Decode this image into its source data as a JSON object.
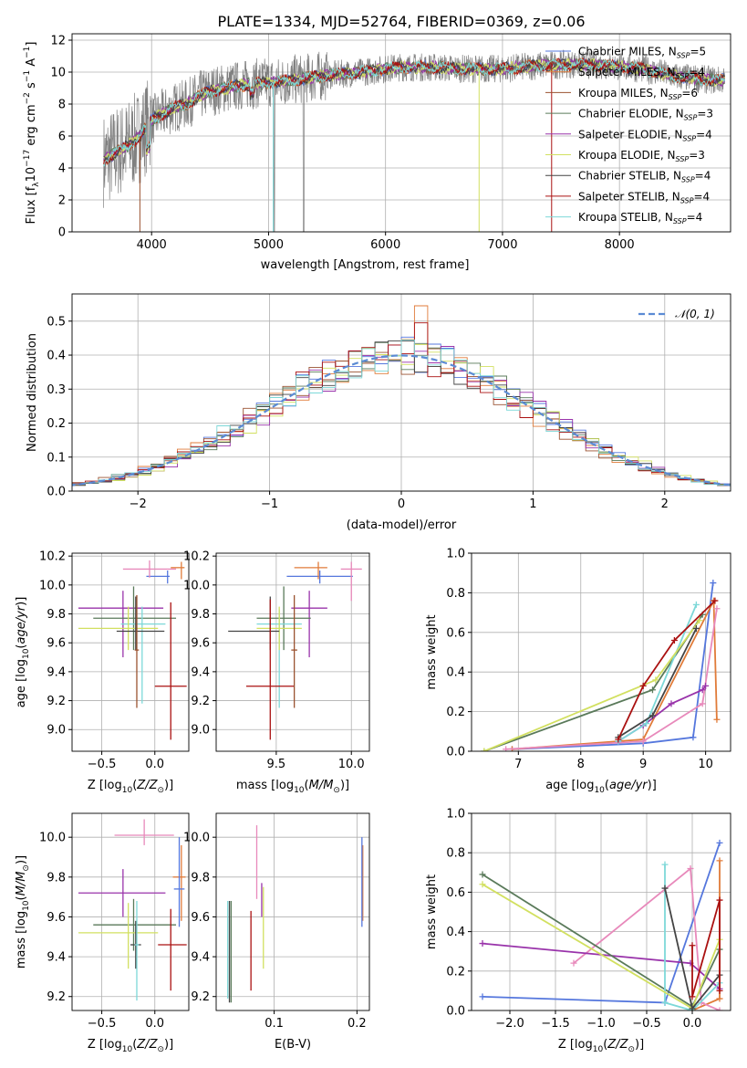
{
  "figure": {
    "title": "PLATE=1334, MJD=52764, FIBERID=0369, z=0.06"
  },
  "colors": {
    "Chabrier MILES": "#5577dd",
    "Salpeter MILES": "#e07b39",
    "Kroupa MILES": "#9a5230",
    "Chabrier ELODIE": "#5a7a5a",
    "Salpeter ELODIE": "#9933aa",
    "Kroupa ELODIE": "#d2e060",
    "Chabrier STELIB": "#444444",
    "Salpeter STELIB": "#aa1111",
    "Kroupa STELIB": "#7dd8d8",
    "data": "#808080",
    "normal": "#5b8bd4"
  },
  "chart_data": [
    {
      "id": "spectrum",
      "type": "line",
      "title": "PLATE=1334, MJD=52764, FIBERID=0369, z=0.06",
      "xlabel": "wavelength [Angstrom, rest frame]",
      "ylabel": "Flux [f_λ 10^-17 erg cm^-2 s^-1 A^-1]",
      "xlim": [
        3320,
        8950
      ],
      "ylim": [
        0,
        12.4
      ],
      "xticks": [
        4000,
        5000,
        6000,
        7000,
        8000
      ],
      "yticks": [
        0,
        2,
        4,
        6,
        8,
        10,
        12
      ],
      "legend_position": "top-right",
      "legend": [
        {
          "name": "Chabrier MILES",
          "sub": "SSP",
          "n": "5",
          "color": "#5577dd"
        },
        {
          "name": "Salpeter MILES",
          "sub": "SSP",
          "n": "4",
          "color": "#e07b39"
        },
        {
          "name": "Kroupa MILES",
          "sub": "SSP",
          "n": "6",
          "color": "#9a5230"
        },
        {
          "name": "Chabrier ELODIE",
          "sub": "SSP",
          "n": "3",
          "color": "#5a7a5a"
        },
        {
          "name": "Salpeter ELODIE",
          "sub": "SSP",
          "n": "4",
          "color": "#9933aa"
        },
        {
          "name": "Kroupa ELODIE",
          "sub": "SSP",
          "n": "3",
          "color": "#d2e060"
        },
        {
          "name": "Chabrier STELIB",
          "sub": "SSP",
          "n": "4",
          "color": "#444444"
        },
        {
          "name": "Salpeter STELIB",
          "sub": "SSP",
          "n": "4",
          "color": "#aa1111"
        },
        {
          "name": "Kroupa STELIB",
          "sub": "SSP",
          "n": "4",
          "color": "#7dd8d8"
        }
      ],
      "continuum": {
        "x": [
          3600,
          3700,
          3800,
          3900,
          4000,
          4100,
          4200,
          4300,
          4400,
          4500,
          4700,
          4900,
          5100,
          5300,
          5500,
          5800,
          6100,
          6400,
          6700,
          7000,
          7300,
          7600,
          7900,
          8200,
          8500,
          8800
        ],
        "y": [
          4.5,
          5.0,
          5.4,
          6.0,
          7.0,
          7.4,
          7.8,
          8.0,
          8.5,
          8.8,
          9.1,
          9.3,
          9.4,
          9.6,
          9.8,
          10.0,
          10.3,
          10.3,
          10.2,
          10.2,
          10.4,
          10.5,
          10.4,
          10.2,
          9.7,
          9.5
        ]
      }
    },
    {
      "id": "residuals",
      "type": "bar",
      "xlabel": "(data-model)/error",
      "ylabel": "Normed distribution",
      "xlim": [
        -2.5,
        2.5
      ],
      "ylim": [
        0,
        0.58
      ],
      "xticks": [
        -2,
        -1,
        0,
        1,
        2
      ],
      "yticks": [
        0.0,
        0.1,
        0.2,
        0.3,
        0.4,
        0.5
      ],
      "bin_width": 0.1,
      "legend_position": "top-right",
      "legend": [
        {
          "name": "𝒩(0, 1)",
          "style": "dashed",
          "color": "#5b8bd4"
        }
      ],
      "normal_curve": {
        "mean": 0,
        "sigma": 1
      }
    },
    {
      "id": "age_vs_Z",
      "type": "scatter",
      "xlabel": "Z [log10(Z/Z⊙)]",
      "ylabel": "age [log10(age/yr)]",
      "xlim": [
        -0.78,
        0.32
      ],
      "ylim": [
        8.85,
        10.22
      ],
      "xticks": [
        -0.5,
        0.0
      ],
      "yticks": [
        9.0,
        9.2,
        9.4,
        9.6,
        9.8,
        10.0,
        10.2
      ],
      "errorbars": [
        {
          "color": "#5577dd",
          "x": 0.12,
          "xerr": [
            0.2,
            0.02
          ],
          "y": 10.06,
          "yerr": [
            0.05,
            0.04
          ]
        },
        {
          "color": "#e07b39",
          "x": 0.25,
          "xerr": [
            0.1,
            0.03
          ],
          "y": 10.12,
          "yerr": [
            0.08,
            0.04
          ]
        },
        {
          "color": "#e889bb",
          "x": -0.05,
          "xerr": [
            0.25,
            0.25
          ],
          "y": 10.11,
          "yerr": [
            0.06,
            0.06
          ]
        },
        {
          "color": "#9933aa",
          "x": -0.3,
          "xerr": [
            0.42,
            0.38
          ],
          "y": 9.84,
          "yerr": [
            0.34,
            0.12
          ]
        },
        {
          "color": "#5a7a5a",
          "x": -0.2,
          "xerr": [
            0.38,
            0.4
          ],
          "y": 9.77,
          "yerr": [
            0.22,
            0.22
          ]
        },
        {
          "color": "#7dd8d8",
          "x": -0.12,
          "xerr": [
            0.2,
            0.22
          ],
          "y": 9.73,
          "yerr": [
            0.55,
            0.12
          ]
        },
        {
          "color": "#d2e060",
          "x": -0.25,
          "xerr": [
            0.47,
            0.28
          ],
          "y": 9.7,
          "yerr": [
            0.15,
            0.15
          ]
        },
        {
          "color": "#444444",
          "x": -0.18,
          "xerr": [
            0.18,
            0.27
          ],
          "y": 9.68,
          "yerr": [
            0.13,
            0.24
          ]
        },
        {
          "color": "#aa1111",
          "x": 0.15,
          "xerr": [
            0.15,
            0.15
          ],
          "y": 9.3,
          "yerr": [
            0.37,
            0.58
          ]
        },
        {
          "color": "#9a5230",
          "x": -0.17,
          "xerr": [
            0.02,
            0.02
          ],
          "y": 9.55,
          "yerr": [
            0.4,
            0.38
          ]
        }
      ]
    },
    {
      "id": "age_vs_mass",
      "type": "scatter",
      "xlabel": "mass [log10(M/M⊙)]",
      "xlim": [
        9.1,
        10.12
      ],
      "ylim": [
        8.85,
        10.22
      ],
      "xticks": [
        9.5,
        10.0
      ],
      "yticks": [
        9.0,
        9.2,
        9.4,
        9.6,
        9.8,
        10.0,
        10.2
      ],
      "errorbars": [
        {
          "color": "#5577dd",
          "x": 9.79,
          "xerr": [
            0.22,
            0.22
          ],
          "y": 10.06,
          "yerr": [
            0.05,
            0.04
          ]
        },
        {
          "color": "#e07b39",
          "x": 9.78,
          "xerr": [
            0.16,
            0.06
          ],
          "y": 10.12,
          "yerr": [
            0.08,
            0.04
          ]
        },
        {
          "color": "#e889bb",
          "x": 10.0,
          "xerr": [
            0.07,
            0.07
          ],
          "y": 10.11,
          "yerr": [
            0.22,
            0.05
          ]
        },
        {
          "color": "#9933aa",
          "x": 9.72,
          "xerr": [
            0.12,
            0.12
          ],
          "y": 9.84,
          "yerr": [
            0.34,
            0.12
          ]
        },
        {
          "color": "#5a7a5a",
          "x": 9.55,
          "xerr": [
            0.18,
            0.18
          ],
          "y": 9.77,
          "yerr": [
            0.22,
            0.22
          ]
        },
        {
          "color": "#7dd8d8",
          "x": 9.52,
          "xerr": [
            0.15,
            0.15
          ],
          "y": 9.73,
          "yerr": [
            0.58,
            0.1
          ]
        },
        {
          "color": "#d2e060",
          "x": 9.52,
          "xerr": [
            0.15,
            0.15
          ],
          "y": 9.7,
          "yerr": [
            0.15,
            0.15
          ]
        },
        {
          "color": "#444444",
          "x": 9.46,
          "xerr": [
            0.28,
            0.06
          ],
          "y": 9.68,
          "yerr": [
            0.13,
            0.24
          ]
        },
        {
          "color": "#aa1111",
          "x": 9.46,
          "xerr": [
            0.16,
            0.16
          ],
          "y": 9.3,
          "yerr": [
            0.37,
            0.6
          ]
        },
        {
          "color": "#9a5230",
          "x": 9.62,
          "xerr": [
            0.02,
            0.02
          ],
          "y": 9.55,
          "yerr": [
            0.4,
            0.38
          ]
        }
      ]
    },
    {
      "id": "weight_vs_age",
      "type": "line",
      "xlabel": "age [log10(age/yr)]",
      "ylabel": "mass weight",
      "xlim": [
        6.25,
        10.4
      ],
      "ylim": [
        0,
        1.0
      ],
      "xticks": [
        7,
        8,
        9,
        10
      ],
      "yticks": [
        0.0,
        0.2,
        0.4,
        0.6,
        0.8,
        1.0
      ],
      "series": [
        {
          "color": "#5577dd",
          "x": [
            6.9,
            9.0,
            9.8,
            10.12
          ],
          "y": [
            0.01,
            0.04,
            0.07,
            0.85
          ]
        },
        {
          "color": "#e07b39",
          "x": [
            6.9,
            9.0,
            10.13,
            10.18
          ],
          "y": [
            0.01,
            0.06,
            0.76,
            0.16
          ]
        },
        {
          "color": "#e889bb",
          "x": [
            6.8,
            9.0,
            9.95,
            10.18
          ],
          "y": [
            0.01,
            0.05,
            0.24,
            0.72
          ]
        },
        {
          "color": "#9933aa",
          "x": [
            8.6,
            9.0,
            9.45,
            9.95,
            10.0
          ],
          "y": [
            0.05,
            0.13,
            0.24,
            0.31,
            0.33
          ]
        },
        {
          "color": "#5a7a5a",
          "x": [
            6.45,
            9.15,
            9.95
          ],
          "y": [
            0.0,
            0.31,
            0.69
          ]
        },
        {
          "color": "#7dd8d8",
          "x": [
            8.6,
            9.05,
            9.85
          ],
          "y": [
            0.05,
            0.14,
            0.74
          ]
        },
        {
          "color": "#d2e060",
          "x": [
            6.45,
            9.2,
            9.9
          ],
          "y": [
            0.0,
            0.36,
            0.66
          ]
        },
        {
          "color": "#444444",
          "x": [
            8.6,
            9.15,
            9.85
          ],
          "y": [
            0.07,
            0.18,
            0.62
          ]
        },
        {
          "color": "#aa1111",
          "x": [
            8.6,
            9.0,
            9.5,
            10.15
          ],
          "y": [
            0.06,
            0.33,
            0.56,
            0.76
          ]
        }
      ]
    },
    {
      "id": "mass_vs_Z",
      "type": "scatter",
      "xlabel": "Z [log10(Z/Z⊙)]",
      "ylabel": "mass [log10(M/M⊙)]",
      "xlim": [
        -0.78,
        0.32
      ],
      "ylim": [
        9.13,
        10.12
      ],
      "xticks": [
        -0.5,
        0.0
      ],
      "yticks": [
        9.2,
        9.4,
        9.6,
        9.8,
        10.0
      ],
      "errorbars": [
        {
          "color": "#e889bb",
          "x": -0.1,
          "xerr": [
            0.28,
            0.28
          ],
          "y": 10.01,
          "yerr": [
            0.05,
            0.08
          ]
        },
        {
          "color": "#e07b39",
          "x": 0.25,
          "xerr": [
            0.08,
            0.04
          ],
          "y": 9.8,
          "yerr": [
            0.22,
            0.16
          ]
        },
        {
          "color": "#5577dd",
          "x": 0.23,
          "xerr": [
            0.05,
            0.05
          ],
          "y": 9.74,
          "yerr": [
            0.19,
            0.26
          ]
        },
        {
          "color": "#9933aa",
          "x": -0.3,
          "xerr": [
            0.42,
            0.4
          ],
          "y": 9.72,
          "yerr": [
            0.12,
            0.12
          ]
        },
        {
          "color": "#5a7a5a",
          "x": -0.2,
          "xerr": [
            0.38,
            0.4
          ],
          "y": 9.56,
          "yerr": [
            0.13,
            0.13
          ]
        },
        {
          "color": "#d2e060",
          "x": -0.25,
          "xerr": [
            0.47,
            0.28
          ],
          "y": 9.52,
          "yerr": [
            0.18,
            0.15
          ]
        },
        {
          "color": "#aa1111",
          "x": 0.15,
          "xerr": [
            0.12,
            0.15
          ],
          "y": 9.46,
          "yerr": [
            0.23,
            0.18
          ]
        },
        {
          "color": "#444444",
          "x": -0.18,
          "xerr": [
            0.05,
            0.05
          ],
          "y": 9.46,
          "yerr": [
            0.12,
            0.12
          ]
        },
        {
          "color": "#7dd8d8",
          "x": -0.17,
          "xerr": [
            0.02,
            0.02
          ],
          "y": 9.46,
          "yerr": [
            0.28,
            0.22
          ]
        }
      ]
    },
    {
      "id": "mass_vs_ebv",
      "type": "scatter",
      "xlabel": "E(B-V)",
      "xlim": [
        0.03,
        0.215
      ],
      "ylim": [
        9.13,
        10.12
      ],
      "xticks": [
        0.1,
        0.2
      ],
      "yticks": [
        9.2,
        9.4,
        9.6,
        9.8,
        10.0
      ],
      "errorbars": [
        {
          "color": "#e889bb",
          "x": 0.079,
          "y": 9.88,
          "yerr": [
            0.19,
            0.18
          ]
        },
        {
          "color": "#9933aa",
          "x": 0.085,
          "y": 9.72,
          "yerr": [
            0.12,
            0.05
          ]
        },
        {
          "color": "#d2e060",
          "x": 0.087,
          "y": 9.52,
          "yerr": [
            0.18,
            0.23
          ]
        },
        {
          "color": "#aa1111",
          "x": 0.072,
          "y": 9.39,
          "yerr": [
            0.16,
            0.24
          ]
        },
        {
          "color": "#e07b39",
          "x": 0.207,
          "y": 9.8,
          "yerr": [
            0.22,
            0.16
          ]
        },
        {
          "color": "#5577dd",
          "x": 0.206,
          "y": 9.77,
          "yerr": [
            0.22,
            0.23
          ]
        },
        {
          "color": "#444444",
          "x": 0.046,
          "y": 9.43,
          "yerr": [
            0.26,
            0.25
          ]
        },
        {
          "color": "#7dd8d8",
          "x": 0.044,
          "y": 9.43,
          "yerr": [
            0.24,
            0.25
          ]
        },
        {
          "color": "#5a7a5a",
          "x": 0.048,
          "y": 9.43,
          "yerr": [
            0.26,
            0.25
          ]
        }
      ]
    },
    {
      "id": "weight_vs_Z",
      "type": "line",
      "xlabel": "Z [log10(Z/Z⊙)]",
      "ylabel": "mass weight",
      "xlim": [
        -2.42,
        0.42
      ],
      "ylim": [
        0,
        1.0
      ],
      "xticks": [
        -2.0,
        -1.5,
        -1.0,
        -0.5,
        0.0
      ],
      "yticks": [
        0.0,
        0.2,
        0.4,
        0.6,
        0.8,
        1.0
      ],
      "series": [
        {
          "color": "#5577dd",
          "x": [
            -2.3,
            -0.3,
            0.3
          ],
          "y": [
            0.07,
            0.04,
            0.85
          ]
        },
        {
          "color": "#e07b39",
          "x": [
            0.0,
            0.3,
            0.3
          ],
          "y": [
            0.0,
            0.06,
            0.76
          ]
        },
        {
          "color": "#e889bb",
          "x": [
            -1.3,
            -0.02,
            0.1,
            0.3
          ],
          "y": [
            0.24,
            0.72,
            0.04,
            0.0
          ]
        },
        {
          "color": "#9933aa",
          "x": [
            -2.3,
            -0.02,
            0.3
          ],
          "y": [
            0.34,
            0.24,
            0.11
          ]
        },
        {
          "color": "#5a7a5a",
          "x": [
            -2.3,
            0.0,
            0.3
          ],
          "y": [
            0.69,
            0.02,
            0.31
          ]
        },
        {
          "color": "#7dd8d8",
          "x": [
            -0.3,
            -0.3,
            0.0,
            0.3
          ],
          "y": [
            0.74,
            0.04,
            0.0,
            0.14
          ]
        },
        {
          "color": "#d2e060",
          "x": [
            -2.3,
            0.0,
            0.3
          ],
          "y": [
            0.64,
            0.01,
            0.36
          ]
        },
        {
          "color": "#444444",
          "x": [
            -0.3,
            0.0,
            0.3
          ],
          "y": [
            0.62,
            0.01,
            0.18
          ]
        },
        {
          "color": "#aa1111",
          "x": [
            0.0,
            0.0,
            0.3,
            0.3
          ],
          "y": [
            0.33,
            0.07,
            0.56,
            0.1
          ]
        }
      ]
    }
  ]
}
